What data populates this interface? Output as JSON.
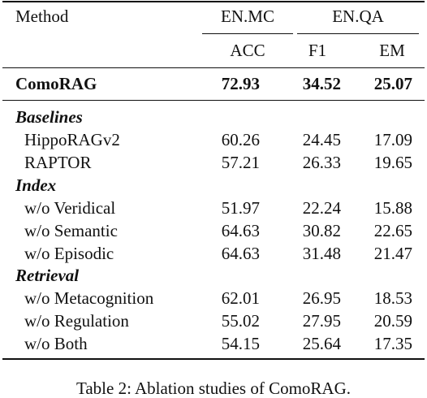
{
  "table": {
    "header": {
      "method": "Method",
      "group_mc": "EN.MC",
      "group_qa": "EN.QA",
      "col_acc": "ACC",
      "col_f1": "F1",
      "col_em": "EM"
    },
    "main_row": {
      "method": "ComoRAG",
      "acc": "72.93",
      "f1": "34.52",
      "em": "25.07"
    },
    "sections": [
      {
        "title": "Baselines",
        "rows": [
          {
            "method": "HippoRAGv2",
            "acc": "60.26",
            "f1": "24.45",
            "em": "17.09"
          },
          {
            "method": "RAPTOR",
            "acc": "57.21",
            "f1": "26.33",
            "em": "19.65"
          }
        ]
      },
      {
        "title": "Index",
        "rows": [
          {
            "method": "w/o Veridical",
            "acc": "51.97",
            "f1": "22.24",
            "em": "15.88"
          },
          {
            "method": "w/o Semantic",
            "acc": "64.63",
            "f1": "30.82",
            "em": "22.65"
          },
          {
            "method": "w/o Episodic",
            "acc": "64.63",
            "f1": "31.48",
            "em": "21.47"
          }
        ]
      },
      {
        "title": "Retrieval",
        "rows": [
          {
            "method": "w/o Metacognition",
            "acc": "62.01",
            "f1": "26.95",
            "em": "18.53"
          },
          {
            "method": "w/o Regulation",
            "acc": "55.02",
            "f1": "27.95",
            "em": "20.59"
          },
          {
            "method": "w/o Both",
            "acc": "54.15",
            "f1": "25.64",
            "em": "17.35"
          }
        ]
      }
    ]
  },
  "caption": "Table 2: Ablation studies of ComoRAG."
}
